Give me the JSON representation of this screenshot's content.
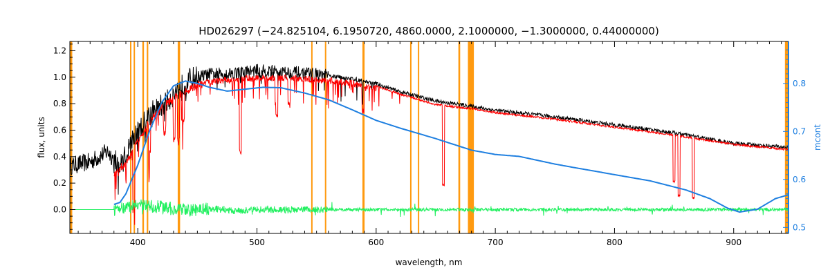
{
  "chart_data": {
    "type": "line",
    "title": "HD026297   (−24.825104, 6.1950720, 4860.0000, 2.1000000, −1.3000000, 0.44000000)",
    "xlabel": "wavelength, nm",
    "ylabel": "flux, units",
    "y2label": "mcont",
    "xlim": [
      343,
      946
    ],
    "ylim": [
      -0.18,
      1.27
    ],
    "y2lim": [
      0.4875,
      0.8875
    ],
    "x_ticks": [
      400,
      500,
      600,
      700,
      800,
      900
    ],
    "y_ticks": [
      0.0,
      0.2,
      0.4,
      0.6,
      0.8,
      1.0,
      1.2
    ],
    "y_tick_labels": [
      "0.0",
      "0.2",
      "0.4",
      "0.6",
      "0.8",
      "1.0",
      "1.2"
    ],
    "y2_ticks": [
      0.5,
      0.6,
      0.7,
      0.8
    ],
    "y2_tick_labels": [
      "0.5",
      "0.6",
      "0.7",
      "0.8"
    ],
    "grid": false,
    "legend": "none",
    "colors": {
      "observed": "#000000",
      "model": "#ff0000",
      "continuum": "#1e7fe0",
      "residual": "#22f060",
      "masks": "#ff9a10",
      "right_axis": "#1e7fe0"
    },
    "mask_regions": [
      [
        343,
        345
      ],
      [
        393.5,
        394.5
      ],
      [
        396.5,
        397.5
      ],
      [
        403.8,
        405.2
      ],
      [
        407.5,
        408.8
      ],
      [
        433.5,
        435.5
      ],
      [
        545.5,
        546.5
      ],
      [
        557,
        558
      ],
      [
        588.5,
        590.3
      ],
      [
        628.5,
        629.5
      ],
      [
        635,
        636
      ],
      [
        669,
        670.5
      ],
      [
        677,
        682
      ],
      [
        943,
        946
      ]
    ],
    "series": [
      {
        "role": "observed",
        "x": [
          343,
          360,
          375,
          385,
          395,
          410,
          425,
          435,
          445,
          460,
          480,
          500,
          520,
          540,
          560,
          580,
          600,
          620,
          650,
          680,
          700,
          750,
          800,
          850,
          900,
          946
        ],
        "values": [
          0.33,
          0.36,
          0.44,
          0.32,
          0.52,
          0.72,
          0.82,
          0.92,
          0.99,
          1.02,
          1.03,
          1.05,
          1.04,
          1.03,
          1.01,
          0.99,
          0.95,
          0.89,
          0.82,
          0.78,
          0.75,
          0.7,
          0.64,
          0.58,
          0.5,
          0.47
        ]
      },
      {
        "role": "model",
        "x": [
          380,
          390,
          400,
          410,
          420,
          435,
          450,
          470,
          500,
          520,
          540,
          560,
          580,
          600,
          620,
          650,
          680,
          700,
          750,
          800,
          850,
          900,
          946
        ],
        "values": [
          0.3,
          0.38,
          0.55,
          0.7,
          0.8,
          0.9,
          0.97,
          1.0,
          1.02,
          1.02,
          1.01,
          1.0,
          0.98,
          0.94,
          0.88,
          0.8,
          0.77,
          0.74,
          0.69,
          0.63,
          0.57,
          0.5,
          0.46
        ]
      },
      {
        "role": "continuum",
        "axis": "right",
        "x": [
          380,
          385,
          390,
          400,
          410,
          420,
          430,
          440,
          450,
          460,
          475,
          490,
          505,
          520,
          540,
          560,
          580,
          600,
          620,
          650,
          680,
          700,
          720,
          750,
          770,
          800,
          830,
          860,
          880,
          895,
          905,
          920,
          935,
          946
        ],
        "values": [
          0.548,
          0.552,
          0.57,
          0.63,
          0.702,
          0.76,
          0.795,
          0.805,
          0.8,
          0.792,
          0.784,
          0.788,
          0.792,
          0.791,
          0.78,
          0.766,
          0.745,
          0.723,
          0.707,
          0.685,
          0.661,
          0.652,
          0.648,
          0.632,
          0.623,
          0.61,
          0.597,
          0.578,
          0.56,
          0.54,
          0.532,
          0.538,
          0.56,
          0.568
        ]
      },
      {
        "role": "residual",
        "x": [
          343,
          380,
          400,
          420,
          440,
          460,
          480,
          500,
          550,
          600,
          650,
          700,
          750,
          800,
          850,
          900,
          946
        ],
        "values": [
          0.0,
          0.0,
          0.03,
          0.02,
          -0.01,
          0.01,
          -0.01,
          0.0,
          0.0,
          0.0,
          0.0,
          0.0,
          0.0,
          0.0,
          0.0,
          0.0,
          0.0
        ]
      }
    ]
  }
}
